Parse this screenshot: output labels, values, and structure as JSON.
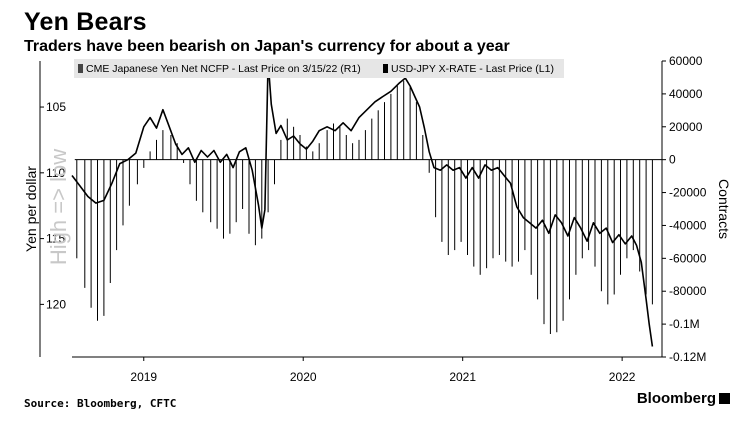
{
  "header": {
    "title": "Yen Bears",
    "subtitle": "Traders have been bearish on Japan's currency for about a year"
  },
  "footer": {
    "source": "Source: Bloomberg, CFTC",
    "brand": "Bloomberg"
  },
  "chart_data": {
    "type": "bar+line",
    "left_axis": {
      "label": "Yen per dollar",
      "watermark": "High => low",
      "ticks": [
        "105",
        "110",
        "115",
        "120"
      ],
      "tick_values": [
        105,
        110,
        115,
        120
      ],
      "range": [
        101.5,
        124
      ],
      "inverted": true
    },
    "right_axis": {
      "label": "Contracts",
      "ticks": [
        "60000",
        "40000",
        "20000",
        "0",
        "-20000",
        "-40000",
        "-60000",
        "-80000",
        "-0.1M",
        "-0.12M"
      ],
      "tick_values": [
        60000,
        40000,
        20000,
        0,
        -20000,
        -40000,
        -60000,
        -80000,
        -100000,
        -120000
      ],
      "range": [
        -120000,
        60000
      ]
    },
    "x_axis": {
      "ticks": [
        "2019",
        "2020",
        "2021",
        "2022"
      ],
      "tick_values": [
        2019.0,
        2020.0,
        2021.0,
        2022.0
      ],
      "range": [
        2018.55,
        2022.25
      ]
    },
    "legend": [
      {
        "label": "CME Japanese Yen Net NCFP - Last Price on 3/15/22 (R1)"
      },
      {
        "label": "USD-JPY X-RATE - Last Price (L1)"
      }
    ],
    "series": [
      {
        "name": "CME Japanese Yen Net NCFP - Last Price on 3/15/22 (R1)",
        "kind": "bar",
        "axis": "right",
        "points": [
          [
            2018.58,
            -60000
          ],
          [
            2018.63,
            -78000
          ],
          [
            2018.67,
            -90000
          ],
          [
            2018.71,
            -98000
          ],
          [
            2018.75,
            -95000
          ],
          [
            2018.79,
            -75000
          ],
          [
            2018.83,
            -55000
          ],
          [
            2018.87,
            -40000
          ],
          [
            2018.91,
            -28000
          ],
          [
            2018.96,
            -15000
          ],
          [
            2019.0,
            -5000
          ],
          [
            2019.04,
            5000
          ],
          [
            2019.08,
            12000
          ],
          [
            2019.12,
            18000
          ],
          [
            2019.17,
            15000
          ],
          [
            2019.21,
            10000
          ],
          [
            2019.25,
            -2000
          ],
          [
            2019.29,
            -15000
          ],
          [
            2019.33,
            -25000
          ],
          [
            2019.37,
            -32000
          ],
          [
            2019.42,
            -38000
          ],
          [
            2019.46,
            -42000
          ],
          [
            2019.5,
            -48000
          ],
          [
            2019.54,
            -45000
          ],
          [
            2019.58,
            -38000
          ],
          [
            2019.62,
            -30000
          ],
          [
            2019.66,
            -45000
          ],
          [
            2019.7,
            -52000
          ],
          [
            2019.74,
            -48000
          ],
          [
            2019.78,
            -32000
          ],
          [
            2019.82,
            -15000
          ],
          [
            2019.86,
            12000
          ],
          [
            2019.9,
            25000
          ],
          [
            2019.94,
            20000
          ],
          [
            2019.98,
            15000
          ],
          [
            2020.02,
            8000
          ],
          [
            2020.06,
            5000
          ],
          [
            2020.1,
            10000
          ],
          [
            2020.15,
            18000
          ],
          [
            2020.19,
            22000
          ],
          [
            2020.23,
            20000
          ],
          [
            2020.27,
            15000
          ],
          [
            2020.31,
            10000
          ],
          [
            2020.35,
            12000
          ],
          [
            2020.39,
            18000
          ],
          [
            2020.43,
            25000
          ],
          [
            2020.47,
            30000
          ],
          [
            2020.51,
            35000
          ],
          [
            2020.55,
            40000
          ],
          [
            2020.59,
            45000
          ],
          [
            2020.63,
            48000
          ],
          [
            2020.67,
            44000
          ],
          [
            2020.71,
            35000
          ],
          [
            2020.75,
            15000
          ],
          [
            2020.79,
            -8000
          ],
          [
            2020.83,
            -35000
          ],
          [
            2020.87,
            -50000
          ],
          [
            2020.91,
            -58000
          ],
          [
            2020.95,
            -55000
          ],
          [
            2020.99,
            -50000
          ],
          [
            2021.03,
            -58000
          ],
          [
            2021.07,
            -65000
          ],
          [
            2021.11,
            -70000
          ],
          [
            2021.15,
            -66000
          ],
          [
            2021.19,
            -60000
          ],
          [
            2021.23,
            -58000
          ],
          [
            2021.27,
            -62000
          ],
          [
            2021.31,
            -65000
          ],
          [
            2021.35,
            -62000
          ],
          [
            2021.39,
            -55000
          ],
          [
            2021.43,
            -70000
          ],
          [
            2021.47,
            -85000
          ],
          [
            2021.51,
            -100000
          ],
          [
            2021.55,
            -106000
          ],
          [
            2021.59,
            -105000
          ],
          [
            2021.63,
            -98000
          ],
          [
            2021.67,
            -85000
          ],
          [
            2021.71,
            -70000
          ],
          [
            2021.75,
            -60000
          ],
          [
            2021.79,
            -55000
          ],
          [
            2021.83,
            -65000
          ],
          [
            2021.87,
            -80000
          ],
          [
            2021.91,
            -88000
          ],
          [
            2021.95,
            -82000
          ],
          [
            2021.99,
            -70000
          ],
          [
            2022.03,
            -60000
          ],
          [
            2022.07,
            -55000
          ],
          [
            2022.11,
            -68000
          ],
          [
            2022.15,
            -82000
          ],
          [
            2022.19,
            -88000
          ]
        ]
      },
      {
        "name": "USD-JPY X-RATE - Last Price (L1)",
        "kind": "line",
        "axis": "left",
        "points": [
          [
            2018.55,
            110.2
          ],
          [
            2018.6,
            111.0
          ],
          [
            2018.65,
            111.8
          ],
          [
            2018.7,
            112.3
          ],
          [
            2018.75,
            112.1
          ],
          [
            2018.8,
            110.8
          ],
          [
            2018.85,
            109.3
          ],
          [
            2018.9,
            109.0
          ],
          [
            2018.95,
            108.5
          ],
          [
            2019.0,
            106.5
          ],
          [
            2019.04,
            105.8
          ],
          [
            2019.08,
            106.6
          ],
          [
            2019.12,
            105.2
          ],
          [
            2019.16,
            106.5
          ],
          [
            2019.2,
            107.8
          ],
          [
            2019.24,
            108.6
          ],
          [
            2019.28,
            108.1
          ],
          [
            2019.32,
            109.2
          ],
          [
            2019.36,
            108.3
          ],
          [
            2019.4,
            108.8
          ],
          [
            2019.44,
            108.3
          ],
          [
            2019.48,
            109.2
          ],
          [
            2019.52,
            108.6
          ],
          [
            2019.56,
            109.6
          ],
          [
            2019.6,
            108.4
          ],
          [
            2019.64,
            108.1
          ],
          [
            2019.68,
            109.8
          ],
          [
            2019.72,
            112.5
          ],
          [
            2019.74,
            114.2
          ],
          [
            2019.76,
            112.8
          ],
          [
            2019.78,
            101.5
          ],
          [
            2019.8,
            104.8
          ],
          [
            2019.83,
            107.0
          ],
          [
            2019.86,
            106.4
          ],
          [
            2019.9,
            107.5
          ],
          [
            2019.94,
            107.2
          ],
          [
            2019.98,
            107.8
          ],
          [
            2020.02,
            108.2
          ],
          [
            2020.06,
            107.6
          ],
          [
            2020.1,
            106.8
          ],
          [
            2020.15,
            106.5
          ],
          [
            2020.2,
            106.8
          ],
          [
            2020.25,
            106.2
          ],
          [
            2020.3,
            106.8
          ],
          [
            2020.35,
            105.8
          ],
          [
            2020.4,
            105.2
          ],
          [
            2020.45,
            104.6
          ],
          [
            2020.5,
            104.2
          ],
          [
            2020.55,
            103.8
          ],
          [
            2020.6,
            103.2
          ],
          [
            2020.64,
            102.8
          ],
          [
            2020.67,
            103.4
          ],
          [
            2020.7,
            104.2
          ],
          [
            2020.73,
            105.0
          ],
          [
            2020.76,
            106.6
          ],
          [
            2020.79,
            108.4
          ],
          [
            2020.82,
            109.6
          ],
          [
            2020.86,
            109.8
          ],
          [
            2020.9,
            109.4
          ],
          [
            2020.94,
            109.8
          ],
          [
            2020.98,
            109.6
          ],
          [
            2021.02,
            110.4
          ],
          [
            2021.06,
            109.6
          ],
          [
            2021.1,
            110.4
          ],
          [
            2021.14,
            109.4
          ],
          [
            2021.18,
            109.8
          ],
          [
            2021.22,
            109.6
          ],
          [
            2021.26,
            110.2
          ],
          [
            2021.3,
            110.8
          ],
          [
            2021.34,
            112.6
          ],
          [
            2021.38,
            113.4
          ],
          [
            2021.42,
            113.8
          ],
          [
            2021.46,
            114.2
          ],
          [
            2021.5,
            113.6
          ],
          [
            2021.54,
            114.6
          ],
          [
            2021.58,
            113.2
          ],
          [
            2021.62,
            113.8
          ],
          [
            2021.66,
            114.8
          ],
          [
            2021.7,
            113.4
          ],
          [
            2021.74,
            114.2
          ],
          [
            2021.78,
            115.2
          ],
          [
            2021.82,
            113.8
          ],
          [
            2021.86,
            114.6
          ],
          [
            2021.9,
            114.2
          ],
          [
            2021.94,
            115.3
          ],
          [
            2021.98,
            114.7
          ],
          [
            2022.02,
            115.4
          ],
          [
            2022.06,
            114.8
          ],
          [
            2022.09,
            115.5
          ],
          [
            2022.12,
            116.8
          ],
          [
            2022.15,
            119.6
          ],
          [
            2022.17,
            121.5
          ],
          [
            2022.19,
            123.2
          ]
        ]
      }
    ],
    "colors": {
      "bars": "#000000",
      "line": "#000000",
      "zero_line": "#000000",
      "legend_bg": "#e6e6e6"
    },
    "grid": false,
    "legend_position": "top-left"
  }
}
